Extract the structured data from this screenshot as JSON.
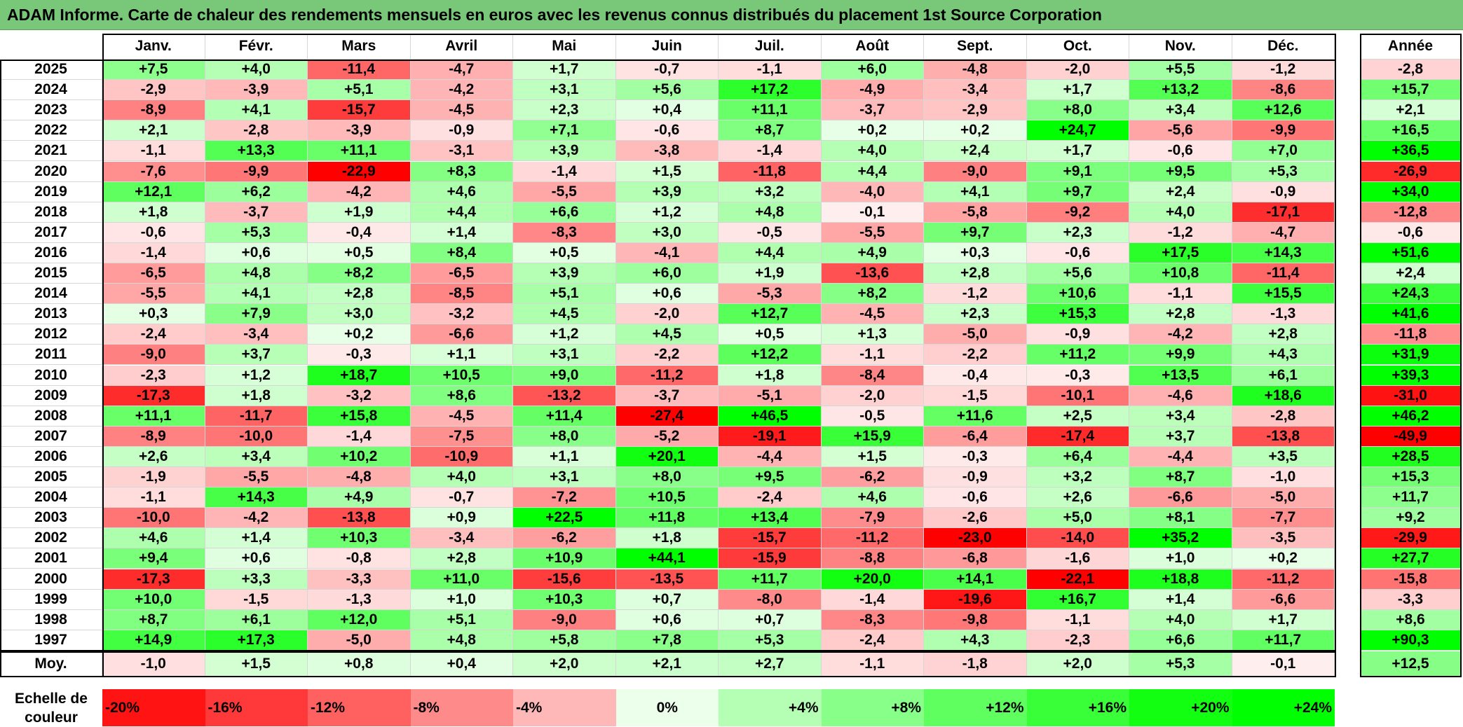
{
  "title": "ADAM Informe. Carte de chaleur des rendements mensuels en euros avec les revenus connus distribués du placement 1st Source Corporation",
  "chart_data": {
    "type": "heatmap",
    "title": "ADAM Informe. Carte de chaleur des rendements mensuels en euros avec les revenus connus distribués du placement 1st Source Corporation",
    "months": [
      "Janv.",
      "Févr.",
      "Mars",
      "Avril",
      "Mai",
      "Juin",
      "Juil.",
      "Août",
      "Sept.",
      "Oct.",
      "Nov.",
      "Déc."
    ],
    "annual_header": "Année",
    "years": [
      "2025",
      "2024",
      "2023",
      "2022",
      "2021",
      "2020",
      "2019",
      "2018",
      "2017",
      "2016",
      "2015",
      "2014",
      "2013",
      "2012",
      "2011",
      "2010",
      "2009",
      "2008",
      "2007",
      "2006",
      "2005",
      "2004",
      "2003",
      "2002",
      "2001",
      "2000",
      "1999",
      "1998",
      "1997"
    ],
    "values": [
      [
        "+7,5",
        "+4,0",
        "-11,4",
        "-4,7",
        "+1,7",
        "-0,7",
        "-1,1",
        "+6,0",
        "-4,8",
        "-2,0",
        "+5,5",
        "-1,2"
      ],
      [
        "-2,9",
        "-3,9",
        "+5,1",
        "-4,2",
        "+3,1",
        "+5,6",
        "+17,2",
        "-4,9",
        "-3,4",
        "+1,7",
        "+13,2",
        "-8,6"
      ],
      [
        "-8,9",
        "+4,1",
        "-15,7",
        "-4,5",
        "+2,3",
        "+0,4",
        "+11,1",
        "-3,7",
        "-2,9",
        "+8,0",
        "+3,4",
        "+12,6"
      ],
      [
        "+2,1",
        "-2,8",
        "-3,9",
        "-0,9",
        "+7,1",
        "-0,6",
        "+8,7",
        "+0,2",
        "+0,2",
        "+24,7",
        "-5,6",
        "-9,9"
      ],
      [
        "-1,1",
        "+13,3",
        "+11,1",
        "-3,1",
        "+3,9",
        "-3,8",
        "-1,4",
        "+4,0",
        "+2,4",
        "+1,7",
        "-0,6",
        "+7,0"
      ],
      [
        "-7,6",
        "-9,9",
        "-22,9",
        "+8,3",
        "-1,4",
        "+1,5",
        "-11,8",
        "+4,4",
        "-9,0",
        "+9,1",
        "+9,5",
        "+5,3"
      ],
      [
        "+12,1",
        "+6,2",
        "-4,2",
        "+4,6",
        "-5,5",
        "+3,9",
        "+3,2",
        "-4,0",
        "+4,1",
        "+9,7",
        "+2,4",
        "-0,9"
      ],
      [
        "+1,8",
        "-3,7",
        "+1,9",
        "+4,4",
        "+6,6",
        "+1,2",
        "+4,8",
        "-0,1",
        "-5,8",
        "-9,2",
        "+4,0",
        "-17,1"
      ],
      [
        "-0,6",
        "+5,3",
        "-0,4",
        "+1,4",
        "-8,3",
        "+3,0",
        "-0,5",
        "-5,5",
        "+9,7",
        "+2,3",
        "-1,2",
        "-4,7"
      ],
      [
        "-1,4",
        "+0,6",
        "+0,5",
        "+8,4",
        "+0,5",
        "-4,1",
        "+4,4",
        "+4,9",
        "+0,3",
        "-0,6",
        "+17,5",
        "+14,3"
      ],
      [
        "-6,5",
        "+4,8",
        "+8,2",
        "-6,5",
        "+3,9",
        "+6,0",
        "+1,9",
        "-13,6",
        "+2,8",
        "+5,6",
        "+10,8",
        "-11,4"
      ],
      [
        "-5,5",
        "+4,1",
        "+2,8",
        "-8,5",
        "+5,1",
        "+0,6",
        "-5,3",
        "+8,2",
        "-1,2",
        "+10,6",
        "-1,1",
        "+15,5"
      ],
      [
        "+0,3",
        "+7,9",
        "+3,0",
        "-3,2",
        "+4,5",
        "-2,0",
        "+12,7",
        "-4,5",
        "+2,3",
        "+15,3",
        "+2,8",
        "-1,3"
      ],
      [
        "-2,4",
        "-3,4",
        "+0,2",
        "-6,6",
        "+1,2",
        "+4,5",
        "+0,5",
        "+1,3",
        "-5,0",
        "-0,9",
        "-4,2",
        "+2,8"
      ],
      [
        "-9,0",
        "+3,7",
        "-0,3",
        "+1,1",
        "+3,1",
        "-2,2",
        "+12,2",
        "-1,1",
        "-2,2",
        "+11,2",
        "+9,9",
        "+4,3"
      ],
      [
        "-2,3",
        "+1,2",
        "+18,7",
        "+10,5",
        "+9,0",
        "-11,2",
        "+1,8",
        "-8,4",
        "-0,4",
        "-0,3",
        "+13,5",
        "+6,1"
      ],
      [
        "-17,3",
        "+1,8",
        "-3,2",
        "+8,6",
        "-13,2",
        "-3,7",
        "-5,1",
        "-2,0",
        "-1,5",
        "-10,1",
        "-4,6",
        "+18,6"
      ],
      [
        "+11,1",
        "-11,7",
        "+15,8",
        "-4,5",
        "+11,4",
        "-27,4",
        "+46,5",
        "-0,5",
        "+11,6",
        "+2,5",
        "+3,4",
        "-2,8"
      ],
      [
        "-8,9",
        "-10,0",
        "-1,4",
        "-7,5",
        "+8,0",
        "-5,2",
        "-19,1",
        "+15,9",
        "-6,4",
        "-17,4",
        "+3,7",
        "-13,8"
      ],
      [
        "+2,6",
        "+3,4",
        "+10,2",
        "-10,9",
        "+1,1",
        "+20,1",
        "-4,4",
        "+1,5",
        "-0,3",
        "+6,4",
        "-4,4",
        "+3,5"
      ],
      [
        "-1,9",
        "-5,5",
        "-4,8",
        "+4,0",
        "+3,1",
        "+8,0",
        "+9,5",
        "-6,2",
        "-0,9",
        "+3,2",
        "+8,7",
        "-1,0"
      ],
      [
        "-1,1",
        "+14,3",
        "+4,9",
        "-0,7",
        "-7,2",
        "+10,5",
        "-2,4",
        "+4,6",
        "-0,6",
        "+2,6",
        "-6,6",
        "-5,0"
      ],
      [
        "-10,0",
        "-4,2",
        "-13,8",
        "+0,9",
        "+22,5",
        "+11,8",
        "+13,4",
        "-7,9",
        "-2,6",
        "+5,0",
        "+8,1",
        "-7,7"
      ],
      [
        "+4,6",
        "+1,4",
        "+10,3",
        "-3,4",
        "-6,2",
        "+1,8",
        "-15,7",
        "-11,2",
        "-23,0",
        "-14,0",
        "+35,2",
        "-3,5"
      ],
      [
        "+9,4",
        "+0,6",
        "-0,8",
        "+2,8",
        "+10,9",
        "+44,1",
        "-15,9",
        "-8,8",
        "-6,8",
        "-1,6",
        "+1,0",
        "+0,2"
      ],
      [
        "-17,3",
        "+3,3",
        "-3,3",
        "+11,0",
        "-15,6",
        "-13,5",
        "+11,7",
        "+20,0",
        "+14,1",
        "-22,1",
        "+18,8",
        "-11,2"
      ],
      [
        "+10,0",
        "-1,5",
        "-1,3",
        "+1,0",
        "+10,3",
        "+0,7",
        "-8,0",
        "-1,4",
        "-19,6",
        "+16,7",
        "+1,4",
        "-6,6"
      ],
      [
        "+8,7",
        "+6,1",
        "+12,0",
        "+5,1",
        "-9,0",
        "+0,6",
        "+0,7",
        "-8,3",
        "-9,8",
        "-1,1",
        "+4,0",
        "+1,7"
      ],
      [
        "+14,9",
        "+17,3",
        "-5,0",
        "+4,8",
        "+5,8",
        "+7,8",
        "+5,3",
        "-2,4",
        "+4,3",
        "-2,3",
        "+6,6",
        "+11,7"
      ]
    ],
    "annual": [
      "-2,8",
      "+15,7",
      "+2,1",
      "+16,5",
      "+36,5",
      "-26,9",
      "+34,0",
      "-12,8",
      "-0,6",
      "+51,6",
      "+2,4",
      "+24,3",
      "+41,6",
      "-11,8",
      "+31,9",
      "+39,3",
      "-31,0",
      "+46,2",
      "-49,9",
      "+28,5",
      "+15,3",
      "+11,7",
      "+9,2",
      "-29,9",
      "+27,7",
      "-15,8",
      "-3,3",
      "+8,6",
      "+90,3"
    ],
    "average_label": "Moy.",
    "average_values": [
      "-1,0",
      "+1,5",
      "+0,8",
      "+0,4",
      "+2,0",
      "+2,1",
      "+2,7",
      "-1,1",
      "-1,8",
      "+2,0",
      "+5,3",
      "-0,1"
    ],
    "average_annual": "+12,5",
    "color_scale": {
      "label": "Echelle de couleur",
      "stops": [
        "-20%",
        "-16%",
        "-12%",
        "-8%",
        "-4%",
        "0%",
        "+4%",
        "+8%",
        "+12%",
        "+16%",
        "+20%",
        "+24%"
      ],
      "stop_values": [
        -20,
        -16,
        -12,
        -8,
        -4,
        0,
        4,
        8,
        12,
        16,
        20,
        24
      ],
      "negative_color": "#ff0000",
      "positive_color": "#00ff00",
      "neutral_color": "#ffffff"
    }
  }
}
